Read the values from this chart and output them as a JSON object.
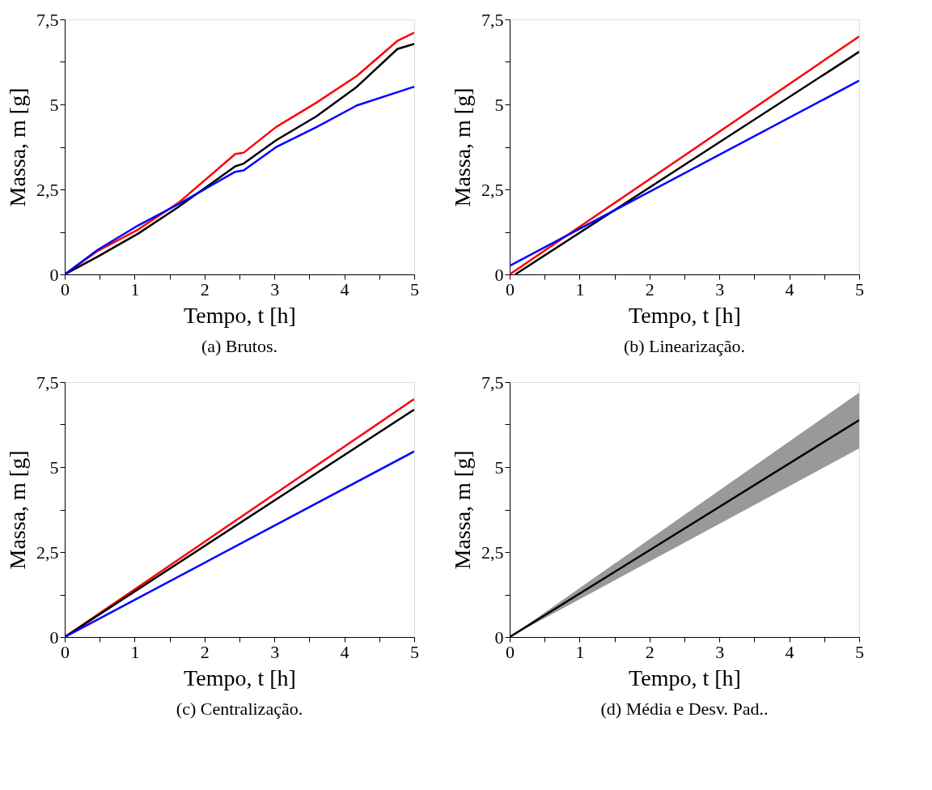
{
  "chart_data": [
    {
      "type": "line",
      "title": "(a) Brutos.",
      "xlabel": "Tempo, t [h]",
      "ylabel": "Massa, m [g]",
      "xlim": [
        0,
        5
      ],
      "ylim": [
        0,
        7.5
      ],
      "grid": false,
      "marker": "none",
      "xticks": [
        0,
        {
          "value": 0.5,
          "label": null
        },
        1,
        {
          "value": 1.5,
          "label": null
        },
        2,
        {
          "value": 2.5,
          "label": null
        },
        3,
        {
          "value": 3.5,
          "label": null
        },
        4,
        {
          "value": 4.5,
          "label": null
        },
        5
      ],
      "yticks": [
        0,
        {
          "value": 1.25,
          "label": null
        },
        {
          "value": 2.5,
          "label": "2,5"
        },
        {
          "value": 3.75,
          "label": null
        },
        5,
        {
          "value": 6.25,
          "label": null
        },
        {
          "value": 7.5,
          "label": "7,5"
        }
      ],
      "series": [
        {
          "color": "#ff0000",
          "x": [
            0,
            0.47,
            1.05,
            1.63,
            2.44,
            2.56,
            3.02,
            3.6,
            4.18,
            4.76,
            5.0
          ],
          "values": [
            0,
            0.69,
            1.32,
            2.11,
            3.54,
            3.58,
            4.33,
            5.05,
            5.84,
            6.87,
            7.11
          ]
        },
        {
          "color": "#000000",
          "x": [
            0,
            0.47,
            1.05,
            1.63,
            2.44,
            2.56,
            3.02,
            3.6,
            4.18,
            4.76,
            5.0
          ],
          "values": [
            0,
            0.52,
            1.2,
            1.99,
            3.18,
            3.26,
            3.94,
            4.65,
            5.52,
            6.63,
            6.78
          ]
        },
        {
          "color": "#0000ff",
          "x": [
            0,
            0.47,
            1.05,
            1.63,
            2.44,
            2.56,
            3.02,
            3.6,
            4.18,
            4.76,
            5.0
          ],
          "values": [
            0,
            0.72,
            1.44,
            2.07,
            3.02,
            3.06,
            3.74,
            4.33,
            4.97,
            5.36,
            5.52
          ]
        }
      ]
    },
    {
      "type": "line",
      "title": "(b) Linearização.",
      "xlabel": "Tempo, t [h]",
      "ylabel": "Massa, m [g]",
      "xlim": [
        0,
        5
      ],
      "ylim": [
        0,
        7.5
      ],
      "grid": false,
      "marker": "none",
      "xticks": [
        0,
        {
          "value": 0.5,
          "label": null
        },
        1,
        {
          "value": 1.5,
          "label": null
        },
        2,
        {
          "value": 2.5,
          "label": null
        },
        3,
        {
          "value": 3.5,
          "label": null
        },
        4,
        {
          "value": 4.5,
          "label": null
        },
        5
      ],
      "yticks": [
        0,
        {
          "value": 1.25,
          "label": null
        },
        {
          "value": 2.5,
          "label": "2,5"
        },
        {
          "value": 3.75,
          "label": null
        },
        5,
        {
          "value": 6.25,
          "label": null
        },
        {
          "value": 7.5,
          "label": "7,5"
        }
      ],
      "series": [
        {
          "color": "#ff0000",
          "x": [
            0,
            5
          ],
          "values": [
            0,
            7.0
          ]
        },
        {
          "color": "#000000",
          "x": [
            0.08,
            5
          ],
          "values": [
            0,
            6.55
          ]
        },
        {
          "color": "#0000ff",
          "x": [
            0,
            5
          ],
          "values": [
            0.25,
            5.7
          ]
        }
      ]
    },
    {
      "type": "line",
      "title": "(c) Centralização.",
      "xlabel": "Tempo, t [h]",
      "ylabel": "Massa, m [g]",
      "xlim": [
        0,
        5
      ],
      "ylim": [
        0,
        7.5
      ],
      "grid": false,
      "marker": "none",
      "xticks": [
        0,
        {
          "value": 0.5,
          "label": null
        },
        1,
        {
          "value": 1.5,
          "label": null
        },
        2,
        {
          "value": 2.5,
          "label": null
        },
        3,
        {
          "value": 3.5,
          "label": null
        },
        4,
        {
          "value": 4.5,
          "label": null
        },
        5
      ],
      "yticks": [
        0,
        {
          "value": 1.25,
          "label": null
        },
        {
          "value": 2.5,
          "label": "2,5"
        },
        {
          "value": 3.75,
          "label": null
        },
        5,
        {
          "value": 6.25,
          "label": null
        },
        {
          "value": 7.5,
          "label": "7,5"
        }
      ],
      "series": [
        {
          "color": "#ff0000",
          "x": [
            0,
            5
          ],
          "values": [
            0,
            7.0
          ]
        },
        {
          "color": "#000000",
          "x": [
            0,
            5
          ],
          "values": [
            0,
            6.69
          ]
        },
        {
          "color": "#0000ff",
          "x": [
            0,
            5
          ],
          "values": [
            0,
            5.46
          ]
        }
      ]
    },
    {
      "type": "line",
      "title": "(d) Média e Desv. Pad..",
      "xlabel": "Tempo, t [h]",
      "ylabel": "Massa, m [g]",
      "xlim": [
        0,
        5
      ],
      "ylim": [
        0,
        7.5
      ],
      "grid": false,
      "marker": "none",
      "xticks": [
        0,
        {
          "value": 0.5,
          "label": null
        },
        1,
        {
          "value": 1.5,
          "label": null
        },
        2,
        {
          "value": 2.5,
          "label": null
        },
        3,
        {
          "value": 3.5,
          "label": null
        },
        4,
        {
          "value": 4.5,
          "label": null
        },
        5
      ],
      "yticks": [
        0,
        {
          "value": 1.25,
          "label": null
        },
        {
          "value": 2.5,
          "label": "2,5"
        },
        {
          "value": 3.75,
          "label": null
        },
        5,
        {
          "value": 6.25,
          "label": null
        },
        {
          "value": 7.5,
          "label": "7,5"
        }
      ],
      "series": [
        {
          "color": "#000000",
          "x": [
            0,
            5
          ],
          "values": [
            0,
            6.38
          ],
          "lower": [
            0,
            5.55
          ],
          "upper": [
            0,
            7.19
          ]
        }
      ]
    }
  ]
}
